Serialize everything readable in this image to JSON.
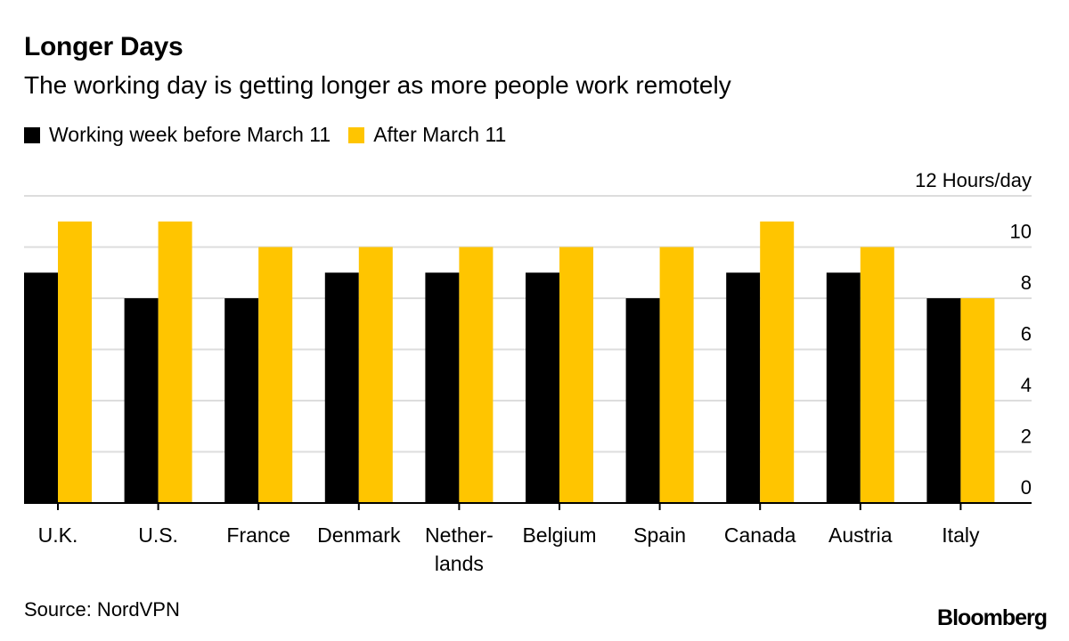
{
  "header": {
    "title": "Longer Days",
    "subtitle": "The working day is getting longer as more people work remotely"
  },
  "legend": {
    "items": [
      {
        "label": "Working week before March 11",
        "color": "#000000"
      },
      {
        "label": "After March 11",
        "color": "#FFC500"
      }
    ]
  },
  "footer": {
    "source": "Source: NordVPN",
    "logo": "Bloomberg"
  },
  "chart_data": {
    "type": "bar",
    "title": "Longer Days",
    "subtitle": "The working day is getting longer as more people work remotely",
    "categories": [
      [
        "U.K."
      ],
      [
        "U.S."
      ],
      [
        "France"
      ],
      [
        "Denmark"
      ],
      [
        "Nether-",
        "lands"
      ],
      [
        "Belgium"
      ],
      [
        "Spain"
      ],
      [
        "Canada"
      ],
      [
        "Austria"
      ],
      [
        "Italy"
      ]
    ],
    "series": [
      {
        "name": "Working week before March 11",
        "color": "#000000",
        "values": [
          9,
          8,
          8,
          9,
          9,
          9,
          8,
          9,
          9,
          8
        ]
      },
      {
        "name": "After March 11",
        "color": "#FFC500",
        "values": [
          11,
          11,
          10,
          10,
          10,
          10,
          10,
          11,
          10,
          8
        ]
      }
    ],
    "ylim": [
      0,
      12
    ],
    "yticks": [
      0,
      2,
      4,
      6,
      8,
      10,
      12
    ],
    "ytick_labels": [
      "0",
      "2",
      "4",
      "6",
      "8",
      "10",
      "12 Hours/day"
    ],
    "ytick_position": "right",
    "grid": true,
    "legend_position": "top-left",
    "colors": {
      "grid": "#DDDDDD",
      "axis": "#000000"
    }
  }
}
